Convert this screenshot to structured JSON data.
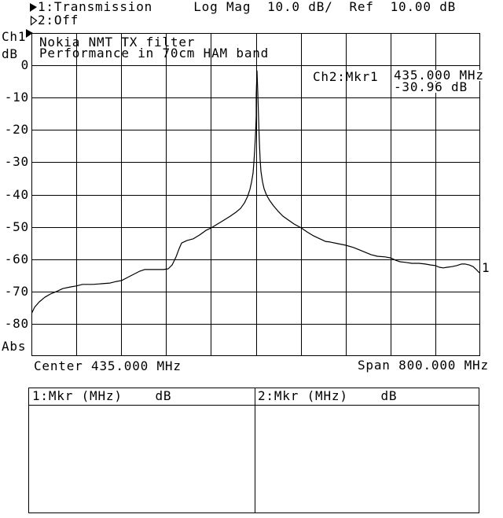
{
  "header": {
    "line1": "1:Transmission     Log Mag  10.0 dB/  Ref  10.00 dB",
    "line2": "2:Off"
  },
  "y_axis": {
    "channel": "Ch1",
    "unit": "dB",
    "labels": [
      "0",
      "-10",
      "-20",
      "-30",
      "-40",
      "-50",
      "-60",
      "-70",
      "-80"
    ],
    "format": "Abs"
  },
  "x_axis": {
    "center": "Center 435.000 MHz",
    "span": "Span 800.000 MHz"
  },
  "plot": {
    "title_line1": "Nokia NMT TX filter",
    "title_line2": "Performance in 70cm HAM band",
    "readout": {
      "label": "Ch2:Mkr1",
      "frequency": "435.000 MHz",
      "level": "-30.96 dB"
    },
    "trace_end_marker": "1"
  },
  "marker_tables": {
    "left_header": "1:Mkr (MHz)    dB",
    "right_header": "2:Mkr (MHz)    dB"
  },
  "chart_data": {
    "type": "line",
    "title": "Nokia NMT TX filter",
    "subtitle": "Performance in 70cm HAM band",
    "ylabel": "dB",
    "y_ref_dB": 10,
    "y_scale_dB_per_div": 10,
    "ylim": [
      -90,
      10
    ],
    "x_center_MHz": 435.0,
    "x_span_MHz": 800.0,
    "x_range_MHz": [
      35,
      835
    ],
    "grid": true,
    "grid_divisions": [
      10,
      10
    ],
    "markers": [
      {
        "name": "Mkr1",
        "channel": "Ch2",
        "freq_MHz": 435.0,
        "level_dB": -30.96
      }
    ],
    "series": [
      {
        "name": "1:Transmission",
        "points": [
          [
            35.0,
            -76.9
          ],
          [
            40.6,
            -74.9
          ],
          [
            49.0,
            -73.2
          ],
          [
            58.8,
            -71.8
          ],
          [
            68.6,
            -70.8
          ],
          [
            79.8,
            -70.0
          ],
          [
            91.0,
            -69.1
          ],
          [
            105.1,
            -68.6
          ],
          [
            114.9,
            -68.3
          ],
          [
            126.1,
            -67.8
          ],
          [
            144.3,
            -67.8
          ],
          [
            161.1,
            -67.6
          ],
          [
            175.1,
            -67.4
          ],
          [
            186.3,
            -66.9
          ],
          [
            196.1,
            -66.6
          ],
          [
            205.9,
            -65.7
          ],
          [
            217.1,
            -64.7
          ],
          [
            228.3,
            -63.7
          ],
          [
            236.7,
            -63.2
          ],
          [
            253.6,
            -63.2
          ],
          [
            270.4,
            -63.2
          ],
          [
            278.8,
            -63.0
          ],
          [
            285.8,
            -61.8
          ],
          [
            292.8,
            -59.3
          ],
          [
            298.4,
            -56.7
          ],
          [
            302.6,
            -55.0
          ],
          [
            312.4,
            -54.2
          ],
          [
            323.6,
            -53.7
          ],
          [
            334.8,
            -52.5
          ],
          [
            346.0,
            -51.1
          ],
          [
            355.8,
            -50.3
          ],
          [
            367.0,
            -49.1
          ],
          [
            378.3,
            -47.9
          ],
          [
            389.5,
            -46.7
          ],
          [
            399.3,
            -45.5
          ],
          [
            407.7,
            -44.3
          ],
          [
            414.7,
            -42.6
          ],
          [
            420.3,
            -40.6
          ],
          [
            424.5,
            -38.4
          ],
          [
            427.3,
            -36.2
          ],
          [
            430.1,
            -33.3
          ],
          [
            431.5,
            -30.1
          ],
          [
            432.9,
            -26.5
          ],
          [
            434.3,
            -21.9
          ],
          [
            435.7,
            -15.8
          ],
          [
            435.7,
            -9.0
          ],
          [
            437.1,
            -1.7
          ],
          [
            438.5,
            -8.5
          ],
          [
            439.9,
            -16.3
          ],
          [
            441.3,
            -23.6
          ],
          [
            442.7,
            -29.2
          ],
          [
            444.1,
            -32.8
          ],
          [
            446.9,
            -36.0
          ],
          [
            449.7,
            -38.2
          ],
          [
            453.9,
            -40.1
          ],
          [
            459.5,
            -41.8
          ],
          [
            466.5,
            -43.5
          ],
          [
            474.9,
            -45.2
          ],
          [
            483.3,
            -46.7
          ],
          [
            493.1,
            -47.9
          ],
          [
            502.9,
            -49.1
          ],
          [
            515.6,
            -50.3
          ],
          [
            526.8,
            -51.6
          ],
          [
            538.0,
            -52.8
          ],
          [
            549.2,
            -53.7
          ],
          [
            559.0,
            -54.5
          ],
          [
            567.4,
            -54.7
          ],
          [
            581.4,
            -55.2
          ],
          [
            595.4,
            -55.7
          ],
          [
            609.4,
            -56.4
          ],
          [
            620.6,
            -57.2
          ],
          [
            630.4,
            -57.9
          ],
          [
            640.3,
            -58.6
          ],
          [
            651.5,
            -59.1
          ],
          [
            665.5,
            -59.3
          ],
          [
            675.3,
            -59.6
          ],
          [
            683.7,
            -60.3
          ],
          [
            692.1,
            -60.8
          ],
          [
            701.9,
            -61.0
          ],
          [
            713.1,
            -61.3
          ],
          [
            725.7,
            -61.3
          ],
          [
            737.0,
            -61.5
          ],
          [
            746.8,
            -61.8
          ],
          [
            755.2,
            -62.0
          ],
          [
            762.2,
            -62.5
          ],
          [
            769.2,
            -62.7
          ],
          [
            776.2,
            -62.5
          ],
          [
            784.6,
            -62.3
          ],
          [
            793.0,
            -62.0
          ],
          [
            801.4,
            -61.5
          ],
          [
            808.4,
            -61.5
          ],
          [
            815.4,
            -61.8
          ],
          [
            822.4,
            -62.3
          ],
          [
            828.0,
            -63.2
          ],
          [
            832.2,
            -64.0
          ],
          [
            835.0,
            -64.4
          ]
        ]
      }
    ]
  }
}
